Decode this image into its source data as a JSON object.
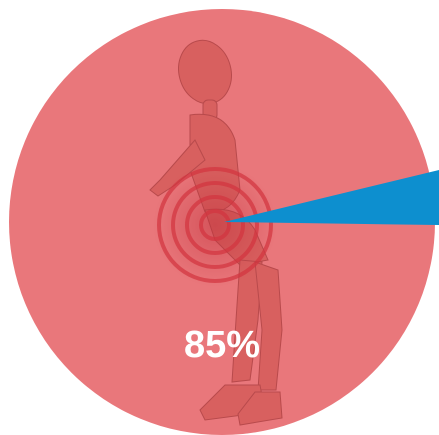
{
  "chart_data": {
    "type": "pie",
    "values": [
      85
    ],
    "value_labels": [
      "85%"
    ],
    "colors": [
      "#e9777b"
    ]
  }
}
